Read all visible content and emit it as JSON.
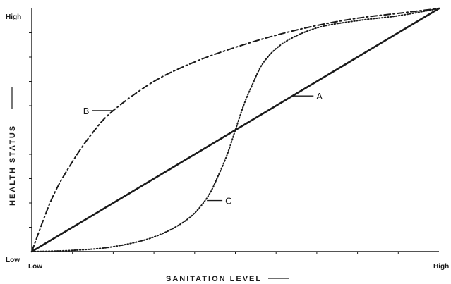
{
  "chart_data": {
    "type": "line",
    "title": "",
    "xlabel": "SANITATION LEVEL",
    "ylabel": "HEALTH STATUS",
    "x_tick_labels": [
      "Low",
      "High"
    ],
    "y_tick_labels": [
      "Low",
      "High"
    ],
    "xlim": [
      0,
      1
    ],
    "ylim": [
      0,
      1
    ],
    "grid": false,
    "legend": "none",
    "series": [
      {
        "name": "A",
        "style": "solid",
        "x": [
          0,
          1
        ],
        "y": [
          0,
          1
        ]
      },
      {
        "name": "B",
        "style": "dash-dot",
        "x": [
          0,
          0.05,
          0.1,
          0.15,
          0.2,
          0.3,
          0.4,
          0.5,
          0.6,
          0.7,
          0.8,
          0.9,
          1.0
        ],
        "y": [
          0,
          0.22,
          0.37,
          0.49,
          0.58,
          0.7,
          0.78,
          0.84,
          0.89,
          0.93,
          0.96,
          0.98,
          1.0
        ]
      },
      {
        "name": "C",
        "style": "dotted",
        "x": [
          0,
          0.1,
          0.2,
          0.3,
          0.38,
          0.43,
          0.46,
          0.48,
          0.5,
          0.52,
          0.54,
          0.57,
          0.62,
          0.7,
          0.8,
          0.9,
          1.0
        ],
        "y": [
          0,
          0.005,
          0.02,
          0.06,
          0.13,
          0.22,
          0.32,
          0.4,
          0.5,
          0.6,
          0.68,
          0.78,
          0.86,
          0.92,
          0.95,
          0.97,
          1.0
        ]
      }
    ],
    "annotations": [
      {
        "text": "A",
        "series": "A",
        "x": 0.64,
        "y": 0.64
      },
      {
        "text": "B",
        "series": "B",
        "x": 0.2,
        "y": 0.58
      },
      {
        "text": "C",
        "series": "C",
        "x": 0.43,
        "y": 0.21
      }
    ],
    "colors": {
      "ink": "#1a1a1a",
      "background": "#ffffff"
    }
  }
}
